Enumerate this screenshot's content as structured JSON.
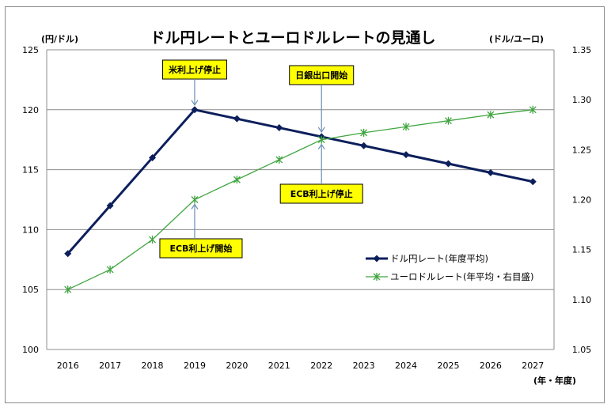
{
  "chart_data": {
    "type": "line",
    "title": "ドル円レートとユーロドルレートの見通し",
    "ylabel_left": "(円/ドル)",
    "ylabel_right": "(ドル/ユーロ)",
    "xlabel": "(年・年度)",
    "x": [
      "2016",
      "2017",
      "2018",
      "2019",
      "2020",
      "2021",
      "2022",
      "2023",
      "2024",
      "2025",
      "2026",
      "2027"
    ],
    "ylim_left": [
      100,
      125
    ],
    "yticks_left": [
      "100",
      "105",
      "110",
      "115",
      "120",
      "125"
    ],
    "ylim_right": [
      1.05,
      1.35
    ],
    "yticks_right": [
      "1.05",
      "1.10",
      "1.15",
      "1.20",
      "1.25",
      "1.30",
      "1.35"
    ],
    "grid": "horizontal",
    "legend_position": "right-middle",
    "series": [
      {
        "name": "ドル円レート(年度平均)",
        "axis": "left",
        "color": "#0c1f5c",
        "marker": "diamond",
        "values": [
          108,
          112,
          116,
          120,
          119.25,
          118.5,
          117.75,
          117,
          116.25,
          115.5,
          114.75,
          114
        ]
      },
      {
        "name": "ユーロドルレート(年平均・右目盛)",
        "axis": "right",
        "color": "#3fa53f",
        "marker": "star",
        "values": [
          1.11,
          1.13,
          1.16,
          1.2,
          1.22,
          1.24,
          1.26,
          1.267,
          1.273,
          1.279,
          1.285,
          1.29
        ]
      }
    ],
    "annotations": [
      {
        "label": "米利上げ停止",
        "x": "2019",
        "target_series": 0
      },
      {
        "label": "日銀出口開始",
        "x": "2022",
        "target_series": 0
      },
      {
        "label": "ECB利上げ停止",
        "x": "2022",
        "target_series": 1
      },
      {
        "label": "ECB利上げ開始",
        "x": "2019",
        "target_series": 1
      }
    ],
    "annotation_color": "#ffff00",
    "arrow_color": "#6b8fb5"
  }
}
